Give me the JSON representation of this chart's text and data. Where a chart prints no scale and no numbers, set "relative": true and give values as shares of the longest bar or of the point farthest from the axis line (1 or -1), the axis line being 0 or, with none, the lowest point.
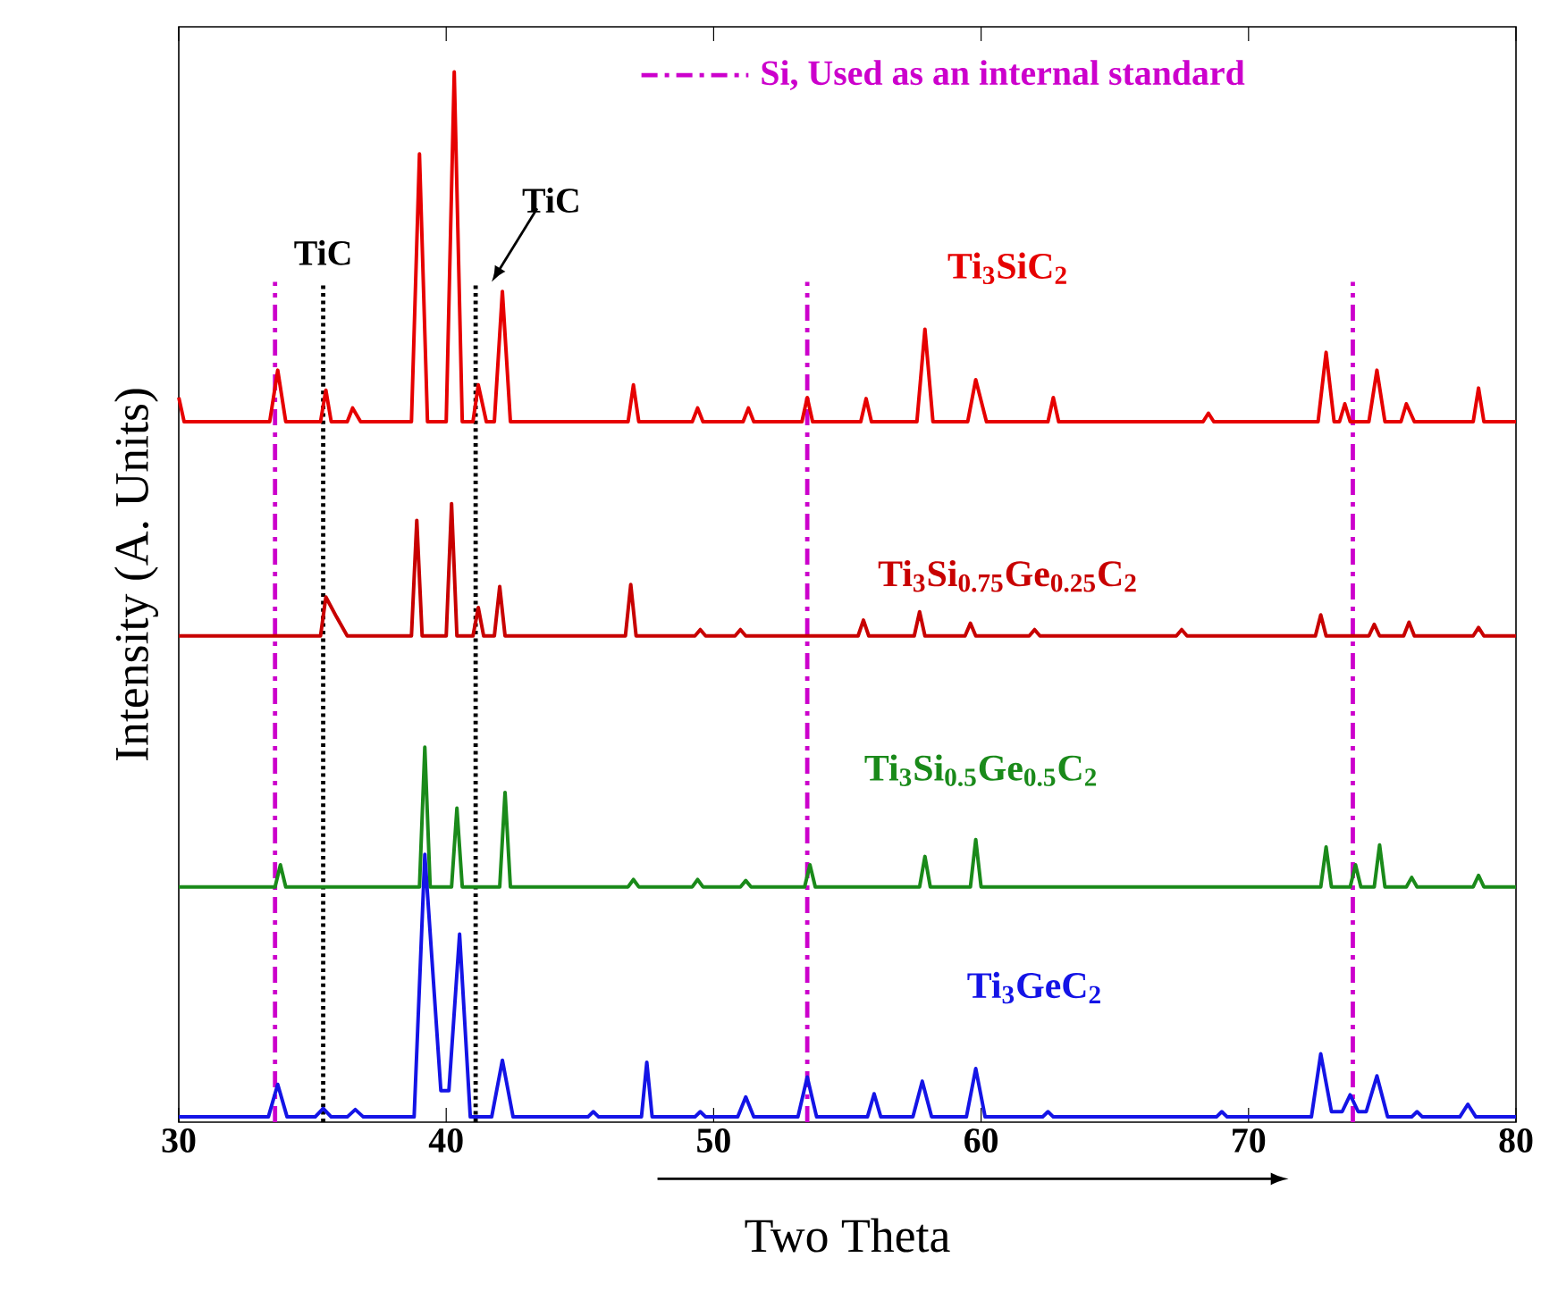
{
  "chart_data": {
    "type": "line",
    "relative": true,
    "xlabel": "Two Theta",
    "ylabel": "Intensity (A. Units)",
    "xlim": [
      30,
      80
    ],
    "xticks": [
      30,
      40,
      50,
      60,
      70,
      80
    ],
    "series": [
      {
        "name": "Ti$_{3}$SiC$_{2}$",
        "color": "#e60000",
        "x": [
          30,
          30.2,
          33.4,
          33.7,
          34.0,
          35.3,
          35.5,
          35.7,
          36.3,
          36.5,
          36.8,
          38.7,
          39.0,
          39.3,
          40.0,
          40.3,
          40.6,
          41.0,
          41.2,
          41.5,
          41.8,
          42.1,
          42.4,
          46.8,
          47.0,
          47.2,
          49.2,
          49.4,
          49.6,
          51.1,
          51.3,
          51.5,
          53.3,
          53.5,
          53.7,
          55.5,
          55.7,
          55.9,
          57.6,
          57.9,
          58.2,
          59.5,
          59.8,
          60.2,
          62.5,
          62.7,
          62.9,
          68.3,
          68.5,
          68.7,
          72.6,
          72.9,
          73.2,
          73.4,
          73.6,
          73.8,
          74.5,
          74.8,
          75.1,
          75.7,
          75.9,
          76.2,
          78.4,
          78.6,
          78.8,
          80
        ],
        "values": [
          0.69,
          0.667,
          0.667,
          0.716,
          0.667,
          0.667,
          0.697,
          0.667,
          0.667,
          0.68,
          0.667,
          0.667,
          0.922,
          0.667,
          0.667,
          1.0,
          0.667,
          0.667,
          0.702,
          0.667,
          0.667,
          0.791,
          0.667,
          0.667,
          0.702,
          0.667,
          0.667,
          0.68,
          0.667,
          0.667,
          0.68,
          0.667,
          0.667,
          0.69,
          0.667,
          0.667,
          0.689,
          0.667,
          0.667,
          0.755,
          0.667,
          0.667,
          0.707,
          0.667,
          0.667,
          0.69,
          0.667,
          0.667,
          0.675,
          0.667,
          0.667,
          0.733,
          0.667,
          0.667,
          0.684,
          0.667,
          0.667,
          0.716,
          0.667,
          0.667,
          0.684,
          0.667,
          0.667,
          0.699,
          0.667,
          0.667
        ]
      },
      {
        "name": "Ti$_{3}$Si$_{0.75}$Ge$_{0.25}$C$_{2}$",
        "color": "#c80000",
        "x": [
          30,
          35.3,
          35.5,
          35.9,
          36.3,
          38.7,
          38.9,
          39.1,
          40.0,
          40.2,
          40.4,
          41.0,
          41.2,
          41.4,
          41.8,
          42.0,
          42.2,
          46.7,
          46.9,
          47.1,
          49.3,
          49.5,
          49.7,
          50.8,
          51.0,
          51.2,
          55.4,
          55.6,
          55.8,
          57.5,
          57.7,
          57.9,
          59.4,
          59.6,
          59.8,
          61.8,
          62.0,
          62.2,
          67.3,
          67.5,
          67.7,
          72.5,
          72.7,
          72.9,
          74.5,
          74.7,
          74.9,
          75.8,
          76.0,
          76.2,
          78.4,
          78.6,
          78.8,
          80
        ],
        "values": [
          0.463,
          0.463,
          0.5,
          0.481,
          0.463,
          0.463,
          0.573,
          0.463,
          0.463,
          0.589,
          0.463,
          0.463,
          0.49,
          0.463,
          0.463,
          0.51,
          0.463,
          0.463,
          0.512,
          0.463,
          0.463,
          0.469,
          0.463,
          0.463,
          0.469,
          0.463,
          0.463,
          0.478,
          0.463,
          0.463,
          0.486,
          0.463,
          0.463,
          0.475,
          0.463,
          0.463,
          0.469,
          0.463,
          0.463,
          0.469,
          0.463,
          0.463,
          0.483,
          0.463,
          0.463,
          0.474,
          0.463,
          0.463,
          0.476,
          0.463,
          0.463,
          0.471,
          0.463,
          0.463
        ]
      },
      {
        "name": "Ti$_{3}$Si$_{0.5}$Ge$_{0.5}$C$_{2}$",
        "color": "#1a8a1a",
        "x": [
          30,
          33.6,
          33.8,
          34.0,
          39.0,
          39.2,
          39.4,
          40.2,
          40.4,
          40.6,
          42.0,
          42.2,
          42.4,
          46.8,
          47.0,
          47.2,
          49.2,
          49.4,
          49.6,
          51.0,
          51.2,
          51.4,
          53.4,
          53.6,
          53.8,
          57.7,
          57.9,
          58.1,
          59.6,
          59.8,
          60.0,
          72.7,
          72.9,
          73.1,
          73.8,
          74.0,
          74.2,
          74.7,
          74.9,
          75.1,
          75.9,
          76.1,
          76.3,
          78.4,
          78.6,
          78.8,
          80
        ],
        "values": [
          0.224,
          0.224,
          0.245,
          0.224,
          0.224,
          0.357,
          0.224,
          0.224,
          0.299,
          0.224,
          0.224,
          0.314,
          0.224,
          0.224,
          0.231,
          0.224,
          0.224,
          0.231,
          0.224,
          0.224,
          0.23,
          0.224,
          0.224,
          0.245,
          0.224,
          0.224,
          0.253,
          0.224,
          0.224,
          0.269,
          0.224,
          0.224,
          0.262,
          0.224,
          0.224,
          0.245,
          0.224,
          0.224,
          0.264,
          0.224,
          0.224,
          0.233,
          0.224,
          0.224,
          0.235,
          0.224,
          0.224
        ]
      },
      {
        "name": "Ti$_{3}$GeC$_{2}$",
        "color": "#1414e6",
        "x": [
          30,
          33.35,
          33.7,
          34.05,
          35.1,
          35.4,
          35.7,
          36.3,
          36.6,
          36.9,
          38.8,
          39.2,
          39.8,
          40.1,
          40.5,
          40.9,
          41.7,
          42.1,
          42.5,
          45.3,
          45.5,
          45.7,
          47.3,
          47.5,
          47.7,
          49.3,
          49.5,
          49.7,
          50.9,
          51.2,
          51.5,
          53.15,
          53.5,
          53.85,
          55.75,
          56.0,
          56.25,
          57.45,
          57.8,
          58.15,
          59.45,
          59.8,
          60.15,
          62.3,
          62.5,
          62.7,
          68.8,
          69.0,
          69.2,
          72.35,
          72.7,
          73.1,
          73.5,
          73.8,
          74.1,
          74.4,
          74.8,
          75.2,
          76.1,
          76.3,
          76.5,
          77.9,
          78.2,
          78.5,
          80
        ],
        "values": [
          0.005,
          0.005,
          0.036,
          0.005,
          0.005,
          0.013,
          0.005,
          0.005,
          0.012,
          0.005,
          0.005,
          0.255,
          0.03,
          0.03,
          0.179,
          0.005,
          0.005,
          0.059,
          0.005,
          0.005,
          0.01,
          0.005,
          0.005,
          0.057,
          0.005,
          0.005,
          0.01,
          0.005,
          0.005,
          0.024,
          0.005,
          0.005,
          0.043,
          0.005,
          0.005,
          0.027,
          0.005,
          0.005,
          0.039,
          0.005,
          0.005,
          0.051,
          0.005,
          0.005,
          0.01,
          0.005,
          0.005,
          0.01,
          0.005,
          0.005,
          0.065,
          0.01,
          0.01,
          0.026,
          0.01,
          0.01,
          0.044,
          0.005,
          0.005,
          0.01,
          0.005,
          0.005,
          0.017,
          0.005,
          0.005
        ]
      }
    ],
    "ref_lines": [
      {
        "axis": "x",
        "value": 33.6,
        "label": "Si, Used as an internal standard",
        "color": "#cc00cc",
        "line_style": "dashdot"
      },
      {
        "axis": "x",
        "value": 53.5,
        "color": "#cc00cc",
        "line_style": "dashdot"
      },
      {
        "axis": "x",
        "value": 73.9,
        "color": "#cc00cc",
        "line_style": "dashdot"
      },
      {
        "axis": "x",
        "value": 35.4,
        "label": "TiC",
        "color": "#000000",
        "line_style": "dotted"
      },
      {
        "axis": "x",
        "value": 41.1,
        "label": "TiC",
        "color": "#000000",
        "line_style": "dotted"
      }
    ]
  }
}
